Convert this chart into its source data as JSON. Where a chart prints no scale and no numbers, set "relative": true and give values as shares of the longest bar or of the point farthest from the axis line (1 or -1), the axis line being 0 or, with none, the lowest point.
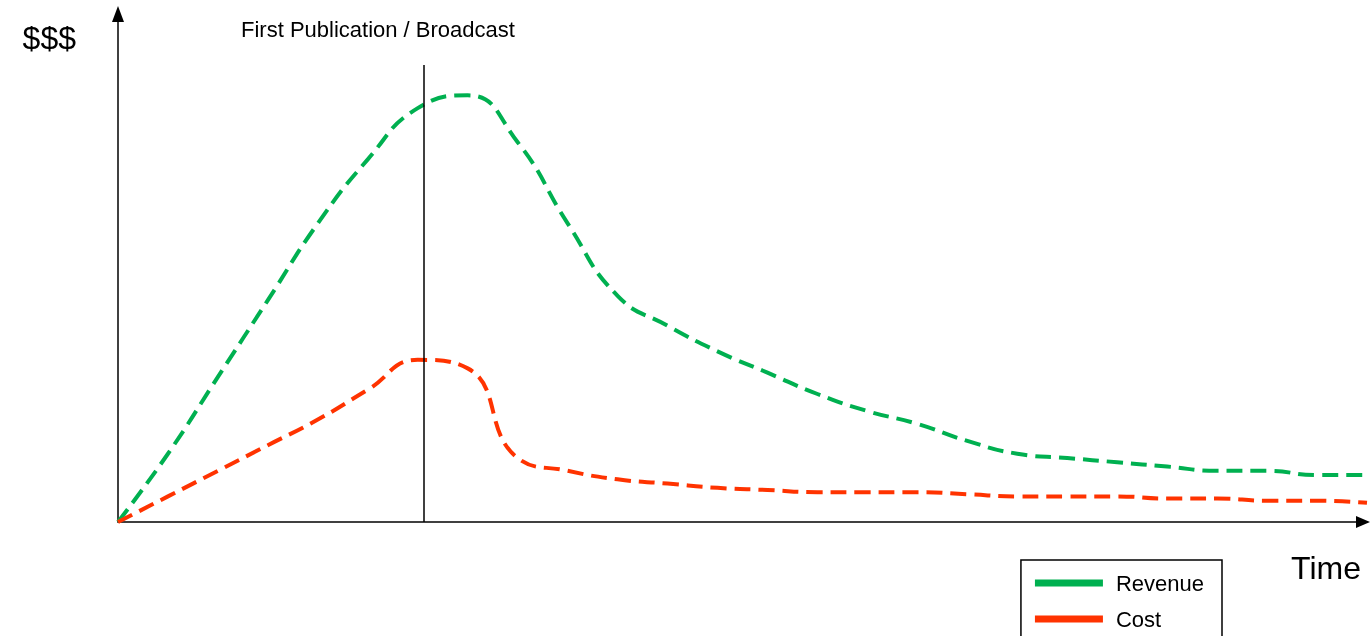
{
  "chart_data": {
    "type": "line",
    "relative": true,
    "xlabel": "Time",
    "ylabel": "$$$",
    "categories": [
      null,
      null,
      null,
      null,
      null,
      null,
      null,
      null,
      null,
      null,
      null,
      null,
      null,
      null,
      null,
      null,
      null,
      null,
      null,
      null,
      null,
      null,
      null,
      null,
      null,
      null
    ],
    "series": [
      {
        "name": "Revenue",
        "color": "#00b050",
        "values": [
          0,
          0.16,
          0.34,
          0.52,
          0.7,
          0.85,
          0.97,
          1,
          0.89,
          0.7,
          0.53,
          0.46,
          0.4,
          0.35,
          0.3,
          0.26,
          0.23,
          0.19,
          0.16,
          0.15,
          0.14,
          0.13,
          0.12,
          0.12,
          0.11,
          0.11
        ]
      },
      {
        "name": "Cost",
        "color": "#ff3300",
        "values": [
          0,
          0.06,
          0.12,
          0.18,
          0.24,
          0.31,
          0.38,
          0.36,
          0.15,
          0.12,
          0.1,
          0.09,
          0.08,
          0.075,
          0.07,
          0.07,
          0.07,
          0.065,
          0.06,
          0.06,
          0.06,
          0.055,
          0.055,
          0.05,
          0.05,
          0.045
        ]
      }
    ],
    "annotations": [
      "First Publication / Broadcast"
    ],
    "line_style": "dashed",
    "marker": "none",
    "legend": "bottom right",
    "grid": false
  }
}
